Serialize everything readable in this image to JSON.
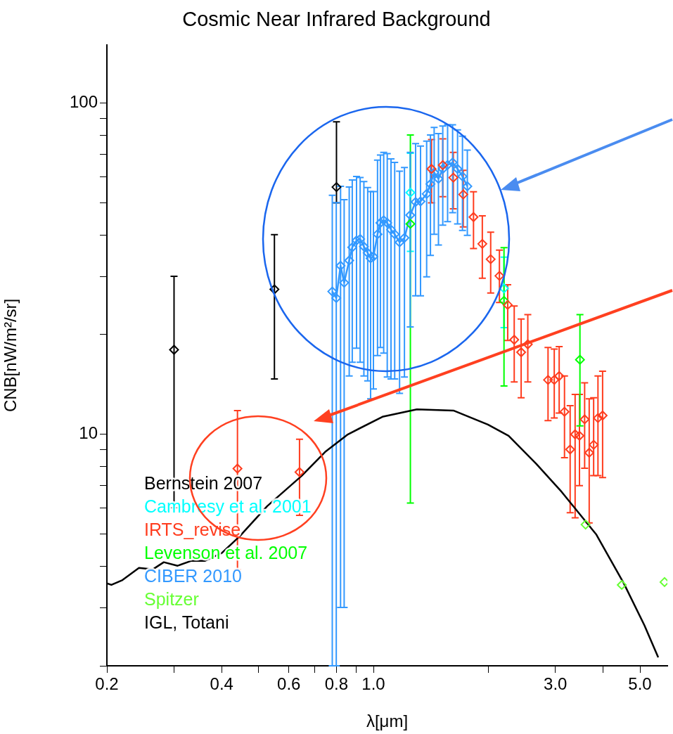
{
  "chart_data": {
    "type": "scatter",
    "title": "Cosmic Near Infrared Background",
    "xlabel": "λ[μm]",
    "ylabel": "CNB[nW/m²/sr]",
    "log": "xy",
    "grid": false,
    "legend": "bottom left",
    "xlim": [
      0.2,
      5.9
    ],
    "ylim": [
      2,
      150
    ],
    "xticks": [
      0.2,
      {
        "value": 0.3,
        "label": null
      },
      0.4,
      {
        "value": 0.5,
        "label": null
      },
      0.6,
      {
        "value": 0.7,
        "label": null
      },
      0.8,
      {
        "value": 0.9,
        "label": null
      },
      {
        "value": 1,
        "label": "1.0"
      },
      {
        "value": 2,
        "label": null
      },
      {
        "value": 3,
        "label": "3.0"
      },
      {
        "value": 4,
        "label": null
      },
      {
        "value": 5,
        "label": "5.0"
      }
    ],
    "yticks": [
      {
        "value": 2,
        "label": null
      },
      {
        "value": 3,
        "label": null
      },
      {
        "value": 4,
        "label": null
      },
      {
        "value": 5,
        "label": null
      },
      {
        "value": 6,
        "label": null
      },
      {
        "value": 7,
        "label": null
      },
      {
        "value": 8,
        "label": null
      },
      {
        "value": 9,
        "label": null
      },
      10,
      {
        "value": 20,
        "label": null
      },
      {
        "value": 30,
        "label": null
      },
      {
        "value": 40,
        "label": null
      },
      {
        "value": 50,
        "label": null
      },
      {
        "value": 60,
        "label": null
      },
      {
        "value": 70,
        "label": null
      },
      {
        "value": 80,
        "label": null
      },
      {
        "value": 90,
        "label": null
      },
      100
    ],
    "series": [
      {
        "name": "Bernstein 2007",
        "marker": "diamond",
        "color": "#000000",
        "x": [
          0.3,
          0.55,
          0.8
        ],
        "values": [
          18,
          27.4,
          55.8
        ],
        "errors": [
          [
            6,
            30
          ],
          [
            14.7,
            40.1
          ],
          [
            50,
            87.9
          ]
        ]
      },
      {
        "name": "Cambresy et al. 2001",
        "marker": "diamond",
        "color": "#00ffff",
        "x": [
          1.25,
          2.2
        ],
        "values": [
          53.7,
          27.6
        ],
        "errors": [
          [
            35.7,
            70.6
          ],
          [
            21,
            34.3
          ]
        ]
      },
      {
        "name": "IRTS_revise",
        "marker": "diamond",
        "color": "#ff3c1e",
        "x": [
          0.44,
          0.64,
          1.42,
          1.52,
          1.62,
          1.72,
          1.83,
          1.93,
          2.03,
          2.14,
          2.25,
          2.34,
          2.44,
          2.54,
          2.87,
          2.98,
          3.07,
          3.17,
          3.28,
          3.38,
          3.47,
          3.58,
          3.68,
          3.78,
          3.88,
          3.99
        ],
        "values": [
          7.88,
          7.69,
          63.3,
          65,
          59.6,
          53,
          45.3,
          37.6,
          33.8,
          30.1,
          24.6,
          19.3,
          17.7,
          18.7,
          14.6,
          14.6,
          15,
          11.7,
          9,
          10,
          9.9,
          11.1,
          8.8,
          9.3,
          11.2,
          11.4
        ],
        "errors": [
          [
            3.9,
            11.8
          ],
          [
            5.69,
            9.66
          ],
          [
            50,
            77.6
          ],
          [
            52.2,
            78
          ],
          [
            48,
            71
          ],
          [
            42.3,
            62.7
          ],
          [
            36.4,
            54
          ],
          [
            29.6,
            45.7
          ],
          [
            26.7,
            40.8
          ],
          [
            25,
            36
          ],
          [
            19.2,
            28.3
          ],
          [
            14.4,
            24.4
          ],
          [
            12.9,
            22.3
          ],
          [
            14.4,
            23
          ],
          [
            11,
            18.3
          ],
          [
            11.2,
            18.1
          ],
          [
            11.6,
            18.4
          ],
          [
            8.5,
            15
          ],
          [
            5.8,
            12.2
          ],
          [
            5.6,
            13.2
          ],
          [
            7,
            13.2
          ],
          [
            7.9,
            14.3
          ],
          [
            5.4,
            12.8
          ],
          [
            7.5,
            12.9
          ],
          [
            7.5,
            15
          ],
          [
            7.4,
            15.5
          ]
        ]
      },
      {
        "name": "Levenson et al. 2007",
        "marker": "diamond",
        "color": "#00ff00",
        "x": [
          1.25,
          2.2,
          3.48
        ],
        "values": [
          43.2,
          25.3,
          16.8
        ],
        "errors": [
          [
            6.2,
            80.2
          ],
          [
            14,
            36.6
          ],
          [
            10.6,
            23
          ]
        ]
      },
      {
        "name": "CIBER 2010",
        "type": "line",
        "marker": "diamond",
        "color": "#3399ff",
        "x": [
          0.78,
          0.799,
          0.82,
          0.838,
          0.864,
          0.88,
          0.903,
          0.923,
          0.944,
          0.966,
          0.983,
          1.0,
          1.025,
          1.043,
          1.064,
          1.087,
          1.112,
          1.137,
          1.171,
          1.206,
          1.249,
          1.29,
          1.329,
          1.379,
          1.411,
          1.443,
          1.481,
          1.52,
          1.565,
          1.613,
          1.662,
          1.712,
          1.763
        ],
        "values": [
          27,
          25.8,
          32.3,
          28.7,
          33.5,
          36.7,
          38.5,
          38.9,
          36.9,
          35.3,
          34,
          34.4,
          40.2,
          43.5,
          44.3,
          43.5,
          41.5,
          40.2,
          38,
          39.2,
          45.9,
          50.3,
          50.5,
          53.2,
          57,
          61.7,
          59.1,
          63.3,
          65.1,
          66.2,
          63.3,
          60.1,
          56.1
        ],
        "errors": [
          [
            2,
            52.7
          ],
          [
            2,
            50.1
          ],
          [
            3,
            56.1
          ],
          [
            3,
            51.1
          ],
          [
            15,
            55.8
          ],
          [
            16.5,
            58.6
          ],
          [
            18.2,
            60.1
          ],
          [
            16.5,
            59.6
          ],
          [
            15,
            58
          ],
          [
            14.5,
            55.6
          ],
          [
            12.8,
            54.1
          ],
          [
            13.7,
            54.1
          ],
          [
            17.3,
            67.3
          ],
          [
            18.3,
            69.7
          ],
          [
            17.6,
            71
          ],
          [
            14.9,
            70.4
          ],
          [
            14.7,
            67.9
          ],
          [
            14.7,
            66.2
          ],
          [
            13.3,
            62.3
          ],
          [
            14.9,
            63.9
          ],
          [
            21.1,
            71
          ],
          [
            26.2,
            75.5
          ],
          [
            26.2,
            74.2
          ],
          [
            29.9,
            76.8
          ],
          [
            34.7,
            80.2
          ],
          [
            40.2,
            84.5
          ],
          [
            37.3,
            80.9
          ],
          [
            42.8,
            85.3
          ],
          [
            43.9,
            86
          ],
          [
            46.7,
            86
          ],
          [
            43.2,
            83
          ],
          [
            41.3,
            79.5
          ],
          [
            39.9,
            72.2
          ]
        ]
      },
      {
        "name": "Spitzer",
        "marker": "diamond",
        "color": "#66ff33",
        "x": [
          3.6,
          4.48,
          5.8
        ],
        "values": [
          5.34,
          3.51,
          3.58
        ]
      },
      {
        "name": "IGL, Totani",
        "type": "line",
        "marker": "none",
        "color": "#000000",
        "x": [
          0.2,
          0.2055,
          0.2197,
          0.2427,
          0.2638,
          0.282,
          0.3065,
          0.3332,
          0.362,
          0.4001,
          0.4458,
          0.5266,
          0.6482,
          0.747,
          0.8573,
          1.056,
          1.3,
          1.621,
          1.996,
          2.262,
          2.672,
          3.117,
          3.838,
          4.534,
          5.137,
          5.583
        ],
        "values": [
          3.55,
          3.51,
          3.63,
          3.95,
          3.91,
          4.11,
          4.01,
          4.15,
          4.15,
          4.38,
          4.92,
          6.07,
          7.49,
          8.85,
          10,
          11.3,
          11.9,
          11.8,
          10.7,
          9.9,
          8.15,
          6.7,
          4.99,
          3.55,
          2.65,
          2.12
        ]
      }
    ]
  }
}
